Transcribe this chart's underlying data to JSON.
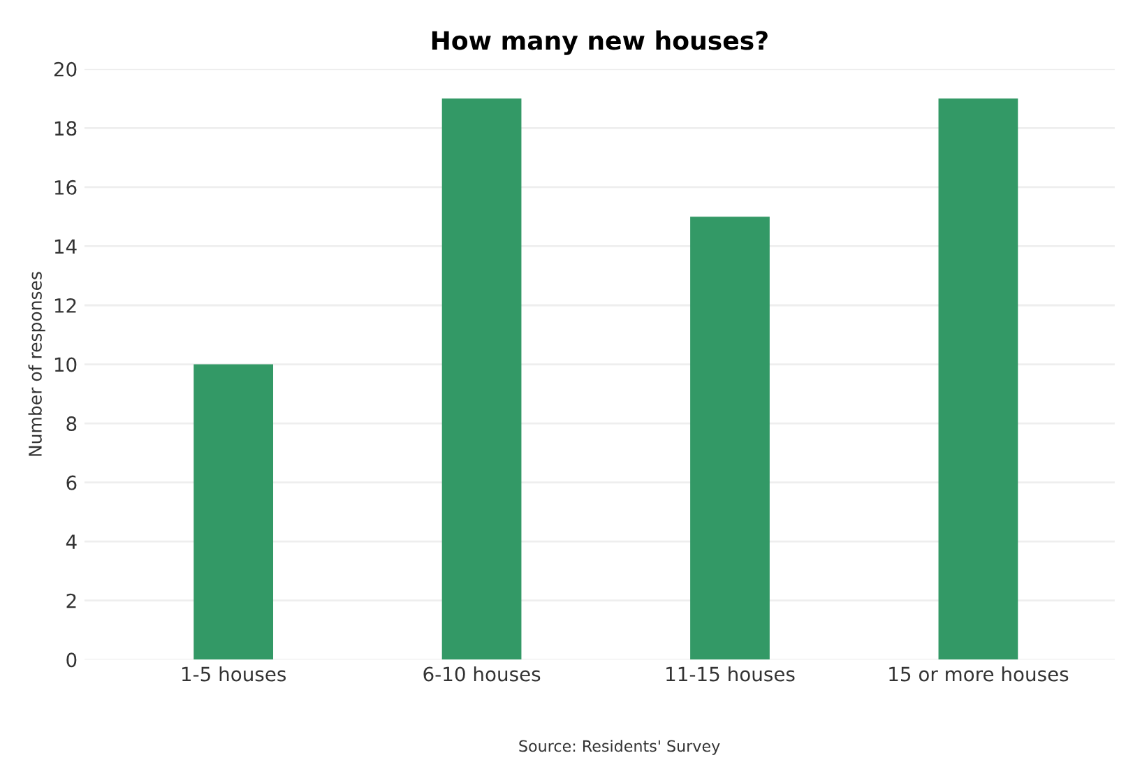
{
  "chart_data": {
    "type": "bar",
    "title": "How many new houses?",
    "ylabel": "Number of responses",
    "categories": [
      "1-5 houses",
      "6-10 houses",
      "11-15 houses",
      "15 or more houses"
    ],
    "values": [
      10,
      19,
      15,
      19
    ],
    "color": "#339966",
    "ylim": [
      0,
      20
    ],
    "yticks": [
      0,
      2,
      4,
      6,
      8,
      10,
      12,
      14,
      16,
      18,
      20
    ],
    "grid": "y",
    "annotations": [
      "Source: Residents' Survey"
    ]
  }
}
